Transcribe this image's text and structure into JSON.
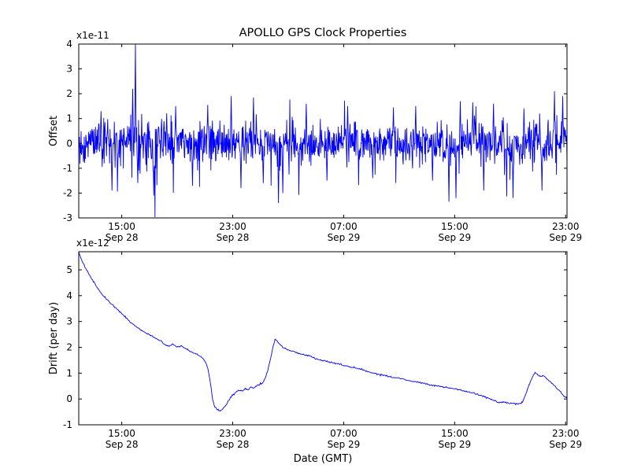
{
  "title": "APOLLO GPS Clock Properties",
  "chart_data": [
    {
      "type": "line",
      "name": "offset",
      "ylabel": "Offset",
      "scale_label": "x1e-11",
      "line_color": "#0000ff",
      "ylim": [
        -3,
        4
      ],
      "yticks": [
        -3,
        -2,
        -1,
        0,
        1,
        2,
        3,
        4
      ],
      "xlim_hours": [
        11.9,
        47.1
      ],
      "xticks": [
        {
          "hour": 15,
          "time": "15:00",
          "date": "Sep 28"
        },
        {
          "hour": 23,
          "time": "23:00",
          "date": "Sep 28"
        },
        {
          "hour": 31,
          "time": "07:00",
          "date": "Sep 29"
        },
        {
          "hour": 39,
          "time": "15:00",
          "date": "Sep 29"
        },
        {
          "hour": 47,
          "time": "23:00",
          "date": "Sep 29"
        }
      ],
      "grid": false,
      "legend": "none",
      "series_description": "dense zero-mean white noise, std ~0.5e-11, with intermittent spikes",
      "noise": {
        "seed": 1234,
        "n": 1250,
        "mean": 0,
        "base_std": 0.42,
        "tail_prob": 0.1,
        "tail_std": 0.8,
        "spikes": [
          {
            "x": 16.0,
            "v": 4.0
          },
          {
            "x": 15.8,
            "v": 2.2
          },
          {
            "x": 16.15,
            "v": -1.6
          },
          {
            "x": 14.3,
            "v": -1.9
          },
          {
            "x": 13.5,
            "v": 1.3
          },
          {
            "x": 17.3,
            "v": -2.1
          },
          {
            "x": 18.9,
            "v": 1.5
          },
          {
            "x": 20.1,
            "v": -1.7
          },
          {
            "x": 21.2,
            "v": 1.55
          },
          {
            "x": 22.9,
            "v": 1.9
          },
          {
            "x": 23.6,
            "v": -1.8
          },
          {
            "x": 24.5,
            "v": 1.85
          },
          {
            "x": 25.2,
            "v": -1.6
          },
          {
            "x": 26.3,
            "v": -2.4
          },
          {
            "x": 26.6,
            "v": -2.0
          },
          {
            "x": 28.3,
            "v": 1.6
          },
          {
            "x": 29.8,
            "v": -1.5
          },
          {
            "x": 31.3,
            "v": 1.5
          },
          {
            "x": 33.1,
            "v": -1.4
          },
          {
            "x": 34.6,
            "v": 1.45
          },
          {
            "x": 36.2,
            "v": 1.5
          },
          {
            "x": 37.4,
            "v": -1.5
          },
          {
            "x": 38.6,
            "v": -2.35
          },
          {
            "x": 39.1,
            "v": -2.2
          },
          {
            "x": 39.4,
            "v": 1.7
          },
          {
            "x": 40.3,
            "v": 1.65
          },
          {
            "x": 41.1,
            "v": -1.9
          },
          {
            "x": 41.8,
            "v": 1.6
          },
          {
            "x": 43.2,
            "v": -2.2
          },
          {
            "x": 44.0,
            "v": 1.4
          },
          {
            "x": 45.3,
            "v": -1.9
          },
          {
            "x": 46.2,
            "v": 2.1
          },
          {
            "x": 46.8,
            "v": 1.9
          }
        ]
      }
    },
    {
      "type": "line",
      "name": "drift",
      "ylabel": "Drift (per day)",
      "xlabel": "Date (GMT)",
      "scale_label": "x1e-12",
      "line_color": "#0000ff",
      "ylim": [
        -1,
        5.7
      ],
      "yticks": [
        -1,
        0,
        1,
        2,
        3,
        4,
        5
      ],
      "xlim_hours": [
        11.9,
        47.1
      ],
      "xticks": [
        {
          "hour": 15,
          "time": "15:00",
          "date": "Sep 28"
        },
        {
          "hour": 23,
          "time": "23:00",
          "date": "Sep 28"
        },
        {
          "hour": 31,
          "time": "07:00",
          "date": "Sep 29"
        },
        {
          "hour": 39,
          "time": "15:00",
          "date": "Sep 29"
        },
        {
          "hour": 47,
          "time": "23:00",
          "date": "Sep 29"
        }
      ],
      "grid": false,
      "legend": "none",
      "keypoints": [
        [
          11.9,
          5.68
        ],
        [
          12.1,
          5.38
        ],
        [
          12.4,
          5.05
        ],
        [
          12.7,
          4.78
        ],
        [
          13.0,
          4.5
        ],
        [
          13.3,
          4.27
        ],
        [
          13.6,
          4.05
        ],
        [
          13.9,
          3.88
        ],
        [
          14.2,
          3.7
        ],
        [
          14.5,
          3.55
        ],
        [
          14.8,
          3.4
        ],
        [
          15.1,
          3.25
        ],
        [
          15.4,
          3.1
        ],
        [
          15.7,
          2.95
        ],
        [
          16.0,
          2.83
        ],
        [
          16.3,
          2.7
        ],
        [
          16.6,
          2.6
        ],
        [
          16.9,
          2.5
        ],
        [
          17.2,
          2.42
        ],
        [
          17.5,
          2.32
        ],
        [
          17.8,
          2.25
        ],
        [
          18.1,
          2.1
        ],
        [
          18.4,
          2.05
        ],
        [
          18.7,
          2.12
        ],
        [
          19.0,
          2.0
        ],
        [
          19.3,
          2.06
        ],
        [
          19.6,
          1.95
        ],
        [
          19.9,
          1.85
        ],
        [
          20.2,
          1.78
        ],
        [
          20.5,
          1.7
        ],
        [
          20.8,
          1.6
        ],
        [
          21.0,
          1.45
        ],
        [
          21.2,
          1.2
        ],
        [
          21.4,
          0.6
        ],
        [
          21.55,
          0.0
        ],
        [
          21.7,
          -0.3
        ],
        [
          21.9,
          -0.42
        ],
        [
          22.1,
          -0.45
        ],
        [
          22.3,
          -0.38
        ],
        [
          22.5,
          -0.25
        ],
        [
          22.7,
          -0.05
        ],
        [
          22.9,
          0.1
        ],
        [
          23.1,
          0.2
        ],
        [
          23.3,
          0.3
        ],
        [
          23.5,
          0.35
        ],
        [
          23.7,
          0.3
        ],
        [
          23.9,
          0.4
        ],
        [
          24.1,
          0.35
        ],
        [
          24.3,
          0.45
        ],
        [
          24.5,
          0.4
        ],
        [
          24.7,
          0.5
        ],
        [
          24.9,
          0.55
        ],
        [
          25.1,
          0.6
        ],
        [
          25.3,
          0.75
        ],
        [
          25.5,
          1.05
        ],
        [
          25.7,
          1.5
        ],
        [
          25.9,
          2.0
        ],
        [
          26.05,
          2.3
        ],
        [
          26.2,
          2.25
        ],
        [
          26.4,
          2.1
        ],
        [
          26.6,
          2.0
        ],
        [
          26.8,
          1.95
        ],
        [
          27.0,
          1.9
        ],
        [
          27.3,
          1.85
        ],
        [
          27.6,
          1.8
        ],
        [
          27.9,
          1.75
        ],
        [
          28.2,
          1.7
        ],
        [
          28.5,
          1.68
        ],
        [
          28.8,
          1.6
        ],
        [
          29.1,
          1.55
        ],
        [
          29.4,
          1.5
        ],
        [
          29.7,
          1.48
        ],
        [
          30.0,
          1.42
        ],
        [
          30.4,
          1.38
        ],
        [
          30.8,
          1.32
        ],
        [
          31.2,
          1.28
        ],
        [
          31.6,
          1.22
        ],
        [
          32.0,
          1.18
        ],
        [
          32.4,
          1.12
        ],
        [
          32.8,
          1.05
        ],
        [
          33.2,
          1.0
        ],
        [
          33.6,
          0.95
        ],
        [
          34.0,
          0.9
        ],
        [
          34.4,
          0.85
        ],
        [
          34.8,
          0.82
        ],
        [
          35.2,
          0.78
        ],
        [
          35.6,
          0.72
        ],
        [
          36.0,
          0.68
        ],
        [
          36.4,
          0.65
        ],
        [
          36.8,
          0.6
        ],
        [
          37.2,
          0.55
        ],
        [
          37.6,
          0.52
        ],
        [
          38.0,
          0.48
        ],
        [
          38.4,
          0.45
        ],
        [
          38.8,
          0.4
        ],
        [
          39.2,
          0.38
        ],
        [
          39.6,
          0.32
        ],
        [
          40.0,
          0.28
        ],
        [
          40.4,
          0.22
        ],
        [
          40.8,
          0.15
        ],
        [
          41.2,
          0.08
        ],
        [
          41.6,
          0.0
        ],
        [
          42.0,
          -0.1
        ],
        [
          42.3,
          -0.15
        ],
        [
          42.6,
          -0.12
        ],
        [
          42.9,
          -0.18
        ],
        [
          43.2,
          -0.15
        ],
        [
          43.5,
          -0.2
        ],
        [
          43.8,
          -0.15
        ],
        [
          44.0,
          0.0
        ],
        [
          44.2,
          0.3
        ],
        [
          44.4,
          0.6
        ],
        [
          44.6,
          0.85
        ],
        [
          44.8,
          1.0
        ],
        [
          45.0,
          0.95
        ],
        [
          45.2,
          0.85
        ],
        [
          45.4,
          0.9
        ],
        [
          45.6,
          0.8
        ],
        [
          45.8,
          0.7
        ],
        [
          46.0,
          0.62
        ],
        [
          46.2,
          0.5
        ],
        [
          46.4,
          0.4
        ],
        [
          46.6,
          0.28
        ],
        [
          46.8,
          0.15
        ],
        [
          47.0,
          0.07
        ],
        [
          47.1,
          0.05
        ]
      ]
    }
  ]
}
